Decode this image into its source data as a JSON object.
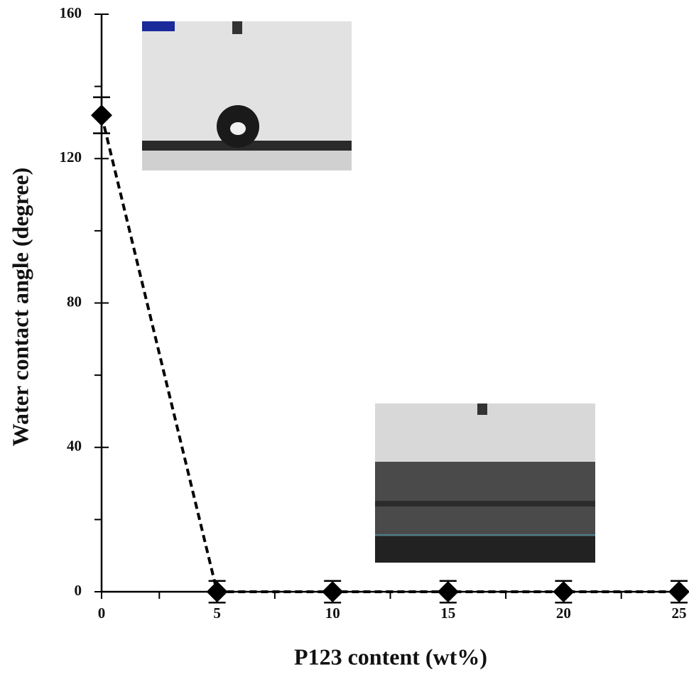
{
  "chart_data": {
    "type": "line",
    "x_label": "P123 content (wt%)",
    "y_label": "Water contact angle (degree)",
    "series": [
      {
        "color": "#000000",
        "x": [
          0,
          5,
          10,
          15,
          20,
          25
        ],
        "values": [
          132,
          0,
          0,
          0,
          0,
          0
        ],
        "errors": [
          5,
          3,
          3,
          3,
          3,
          3
        ]
      }
    ],
    "xlim": [
      0,
      25.4
    ],
    "xticks": [
      0,
      5,
      10,
      15,
      20,
      25
    ],
    "xminorticks": [
      2.5,
      7.5,
      12.5,
      17.5,
      22.5
    ],
    "ylim": [
      0,
      160
    ],
    "yticks": [
      0,
      40,
      80,
      120,
      160
    ],
    "yminorticks": [
      20,
      60,
      100,
      140
    ],
    "line_style": "dashed",
    "marker": "diamond"
  }
}
